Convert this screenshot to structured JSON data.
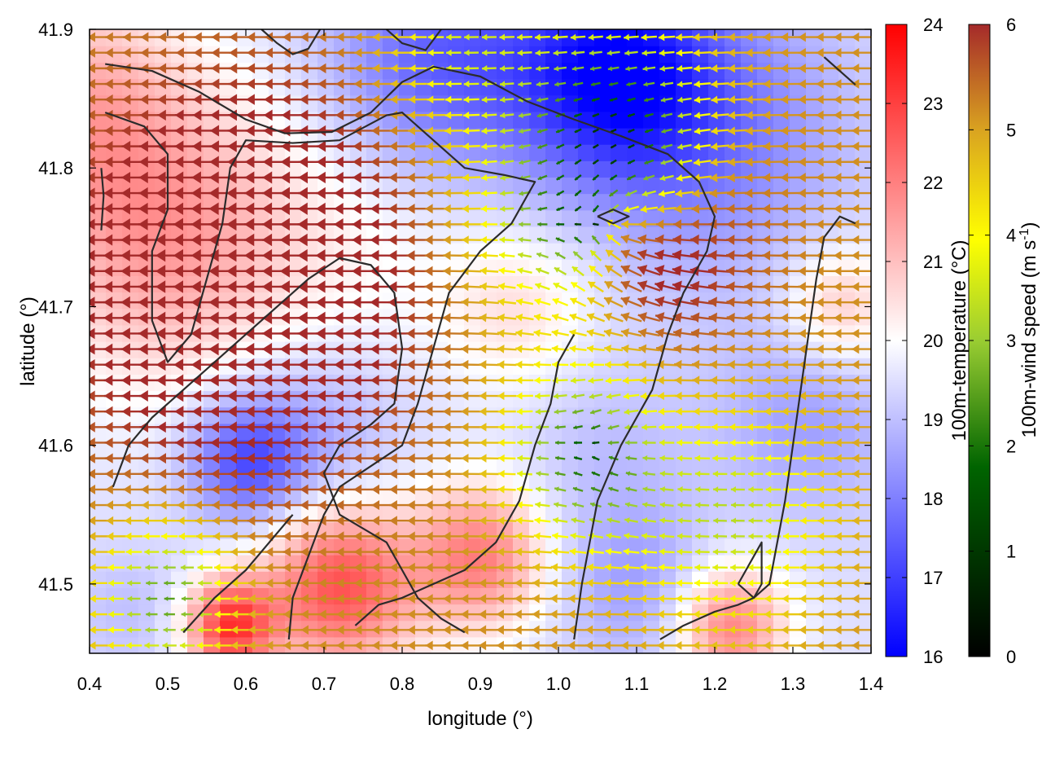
{
  "chart_data": {
    "type": "heatmap",
    "xlabel": "longitude (°)",
    "ylabel": "latitude (°)",
    "xlim": [
      0.4,
      1.4
    ],
    "ylim": [
      41.45,
      41.9
    ],
    "x_ticks": [
      "0.4",
      "0.5",
      "0.6",
      "0.7",
      "0.8",
      "0.9",
      "1.0",
      "1.1",
      "1.2",
      "1.3",
      "1.4"
    ],
    "y_ticks": [
      "41.5",
      "41.6",
      "41.7",
      "41.8",
      "41.9"
    ],
    "temperature_colorbar": {
      "label": "100m-temperature (°C)",
      "range": [
        16,
        24
      ],
      "ticks": [
        "16",
        "17",
        "18",
        "19",
        "20",
        "21",
        "22",
        "23",
        "24"
      ],
      "colors": [
        "#0000ff",
        "#ffffff",
        "#ff0000"
      ]
    },
    "wind_colorbar": {
      "label": "100m-wind speed (m s",
      "label_sup": "-1",
      "label_end": ")",
      "range": [
        0,
        6
      ],
      "ticks": [
        "0",
        "1",
        "2",
        "3",
        "4",
        "5",
        "6"
      ],
      "colors": [
        "#000000",
        "#006400",
        "#9acd32",
        "#ffff00",
        "#daa520",
        "#a52a2a"
      ]
    },
    "temperature_field": {
      "base": 19.5,
      "cells": [
        {
          "lon": 1.07,
          "lat": 41.87,
          "value": 16.5,
          "spread": 0.09
        },
        {
          "lon": 0.85,
          "lat": 41.88,
          "value": 17.5,
          "spread": 0.1
        },
        {
          "lon": 1.2,
          "lat": 41.83,
          "value": 18.0,
          "spread": 0.12
        },
        {
          "lon": 1.06,
          "lat": 41.6,
          "value": 19.0,
          "spread": 0.08
        },
        {
          "lon": 0.68,
          "lat": 41.6,
          "value": 18.5,
          "spread": 0.08
        },
        {
          "lon": 0.6,
          "lat": 41.59,
          "value": 17.5,
          "spread": 0.05
        },
        {
          "lon": 1.1,
          "lat": 41.5,
          "value": 18.5,
          "spread": 0.07
        },
        {
          "lon": 0.45,
          "lat": 41.48,
          "value": 19.0,
          "spread": 0.05
        },
        {
          "lon": 1.32,
          "lat": 41.62,
          "value": 18.5,
          "spread": 0.08
        },
        {
          "lon": 0.5,
          "lat": 41.75,
          "value": 21.5,
          "spread": 0.12
        },
        {
          "lon": 0.38,
          "lat": 41.85,
          "value": 21.0,
          "spread": 0.1
        },
        {
          "lon": 0.72,
          "lat": 41.5,
          "value": 22.8,
          "spread": 0.07
        },
        {
          "lon": 0.9,
          "lat": 41.52,
          "value": 22.0,
          "spread": 0.06
        },
        {
          "lon": 0.58,
          "lat": 41.47,
          "value": 23.0,
          "spread": 0.04
        },
        {
          "lon": 1.22,
          "lat": 41.47,
          "value": 22.0,
          "spread": 0.05
        },
        {
          "lon": 1.36,
          "lat": 41.7,
          "value": 21.0,
          "spread": 0.05
        },
        {
          "lon": 0.95,
          "lat": 41.7,
          "value": 20.5,
          "spread": 0.07
        },
        {
          "lon": 0.75,
          "lat": 41.75,
          "value": 20.0,
          "spread": 0.1
        }
      ]
    },
    "wind_field": {
      "background": {
        "u": -5.0,
        "v": 0.0
      },
      "features": [
        {
          "type": "calm",
          "lon": 1.07,
          "lat": 41.82,
          "strength": 5.0,
          "spread": 0.09
        },
        {
          "type": "calm",
          "lon": 1.06,
          "lat": 41.59,
          "strength": 4.0,
          "spread": 0.07
        },
        {
          "type": "calm",
          "lon": 0.5,
          "lat": 41.49,
          "strength": 3.5,
          "spread": 0.06
        },
        {
          "type": "calm",
          "lon": 0.88,
          "lat": 41.89,
          "strength": 2.0,
          "spread": 0.07
        },
        {
          "type": "calm",
          "lon": 1.22,
          "lat": 41.55,
          "strength": 2.5,
          "spread": 0.09
        },
        {
          "type": "sink",
          "lon": 1.07,
          "lat": 41.76,
          "strength": 4.0,
          "spread": 0.1
        },
        {
          "type": "sink",
          "lon": 1.06,
          "lat": 41.6,
          "strength": 2.0,
          "spread": 0.08
        },
        {
          "type": "jet",
          "lon": 0.6,
          "lat": 41.72,
          "u": -2.5,
          "v": 0.0,
          "spread": 0.15
        }
      ]
    },
    "contours": [
      {
        "points": [
          [
            0.42,
            41.875
          ],
          [
            0.48,
            41.87
          ],
          [
            0.54,
            41.855
          ],
          [
            0.6,
            41.835
          ],
          [
            0.65,
            41.825
          ],
          [
            0.71,
            41.826
          ],
          [
            0.76,
            41.84
          ],
          [
            0.8,
            41.862
          ],
          [
            0.84,
            41.873
          ],
          [
            0.9,
            41.866
          ],
          [
            0.96,
            41.848
          ],
          [
            1.02,
            41.835
          ],
          [
            1.08,
            41.823
          ],
          [
            1.14,
            41.81
          ],
          [
            1.18,
            41.79
          ],
          [
            1.2,
            41.765
          ],
          [
            1.19,
            41.74
          ],
          [
            1.16,
            41.71
          ],
          [
            1.14,
            41.68
          ],
          [
            1.12,
            41.64
          ],
          [
            1.08,
            41.6
          ],
          [
            1.05,
            41.56
          ],
          [
            1.03,
            41.5
          ],
          [
            1.02,
            41.46
          ]
        ]
      },
      {
        "points": [
          [
            0.42,
            41.84
          ],
          [
            0.47,
            41.83
          ],
          [
            0.5,
            41.81
          ],
          [
            0.5,
            41.77
          ],
          [
            0.48,
            41.74
          ],
          [
            0.48,
            41.69
          ],
          [
            0.5,
            41.66
          ],
          [
            0.53,
            41.68
          ],
          [
            0.55,
            41.72
          ],
          [
            0.57,
            41.76
          ],
          [
            0.58,
            41.8
          ],
          [
            0.6,
            41.82
          ],
          [
            0.66,
            41.818
          ],
          [
            0.72,
            41.82
          ],
          [
            0.78,
            41.838
          ],
          [
            0.8,
            41.84
          ],
          [
            0.84,
            41.82
          ],
          [
            0.88,
            41.8
          ],
          [
            0.93,
            41.795
          ],
          [
            0.97,
            41.79
          ],
          [
            0.94,
            41.76
          ],
          [
            0.9,
            41.74
          ],
          [
            0.86,
            41.71
          ],
          [
            0.84,
            41.67
          ],
          [
            0.82,
            41.63
          ],
          [
            0.8,
            41.6
          ],
          [
            0.76,
            41.585
          ],
          [
            0.72,
            41.57
          ],
          [
            0.7,
            41.55
          ],
          [
            0.68,
            41.52
          ],
          [
            0.66,
            41.49
          ],
          [
            0.655,
            41.46
          ]
        ]
      },
      {
        "points": [
          [
            0.43,
            41.57
          ],
          [
            0.45,
            41.6
          ],
          [
            0.48,
            41.62
          ],
          [
            0.52,
            41.64
          ],
          [
            0.56,
            41.66
          ],
          [
            0.6,
            41.68
          ],
          [
            0.64,
            41.7
          ],
          [
            0.68,
            41.72
          ],
          [
            0.72,
            41.735
          ],
          [
            0.76,
            41.73
          ],
          [
            0.79,
            41.71
          ],
          [
            0.8,
            41.67
          ],
          [
            0.79,
            41.63
          ],
          [
            0.76,
            41.615
          ],
          [
            0.72,
            41.6
          ],
          [
            0.7,
            41.58
          ],
          [
            0.72,
            41.55
          ],
          [
            0.75,
            41.54
          ],
          [
            0.78,
            41.53
          ],
          [
            0.8,
            41.51
          ],
          [
            0.82,
            41.49
          ],
          [
            0.85,
            41.475
          ],
          [
            0.88,
            41.465
          ]
        ]
      },
      {
        "points": [
          [
            0.52,
            41.465
          ],
          [
            0.56,
            41.49
          ],
          [
            0.6,
            41.51
          ],
          [
            0.63,
            41.53
          ],
          [
            0.66,
            41.55
          ]
        ]
      },
      {
        "points": [
          [
            0.74,
            41.47
          ],
          [
            0.77,
            41.485
          ],
          [
            0.8,
            41.49
          ],
          [
            0.84,
            41.5
          ],
          [
            0.88,
            41.51
          ],
          [
            0.92,
            41.53
          ],
          [
            0.95,
            41.56
          ],
          [
            0.97,
            41.6
          ],
          [
            0.99,
            41.63
          ],
          [
            1.0,
            41.66
          ],
          [
            1.02,
            41.68
          ]
        ]
      },
      {
        "points": [
          [
            1.13,
            41.46
          ],
          [
            1.16,
            41.47
          ],
          [
            1.2,
            41.48
          ],
          [
            1.23,
            41.485
          ],
          [
            1.25,
            41.49
          ],
          [
            1.27,
            41.5
          ],
          [
            1.28,
            41.53
          ],
          [
            1.29,
            41.56
          ],
          [
            1.3,
            41.6
          ],
          [
            1.31,
            41.64
          ],
          [
            1.32,
            41.68
          ],
          [
            1.33,
            41.72
          ],
          [
            1.34,
            41.75
          ],
          [
            1.36,
            41.765
          ],
          [
            1.38,
            41.76
          ]
        ]
      },
      {
        "points": [
          [
            1.23,
            41.5
          ],
          [
            1.25,
            41.52
          ],
          [
            1.26,
            41.53
          ],
          [
            1.26,
            41.5
          ],
          [
            1.25,
            41.49
          ],
          [
            1.23,
            41.5
          ]
        ]
      },
      {
        "points": [
          [
            1.05,
            41.765
          ],
          [
            1.07,
            41.77
          ],
          [
            1.09,
            41.765
          ],
          [
            1.07,
            41.76
          ],
          [
            1.05,
            41.765
          ]
        ]
      },
      {
        "points": [
          [
            0.62,
            41.9
          ],
          [
            0.64,
            41.89
          ],
          [
            0.66,
            41.882
          ],
          [
            0.68,
            41.886
          ],
          [
            0.695,
            41.9
          ]
        ]
      },
      {
        "points": [
          [
            0.78,
            41.9
          ],
          [
            0.8,
            41.89
          ],
          [
            0.83,
            41.885
          ],
          [
            0.85,
            41.9
          ]
        ]
      },
      {
        "points": [
          [
            1.34,
            41.88
          ],
          [
            1.36,
            41.87
          ],
          [
            1.38,
            41.86
          ]
        ]
      },
      {
        "points": [
          [
            0.415,
            41.755
          ],
          [
            0.418,
            41.78
          ],
          [
            0.415,
            41.8
          ]
        ]
      }
    ]
  }
}
